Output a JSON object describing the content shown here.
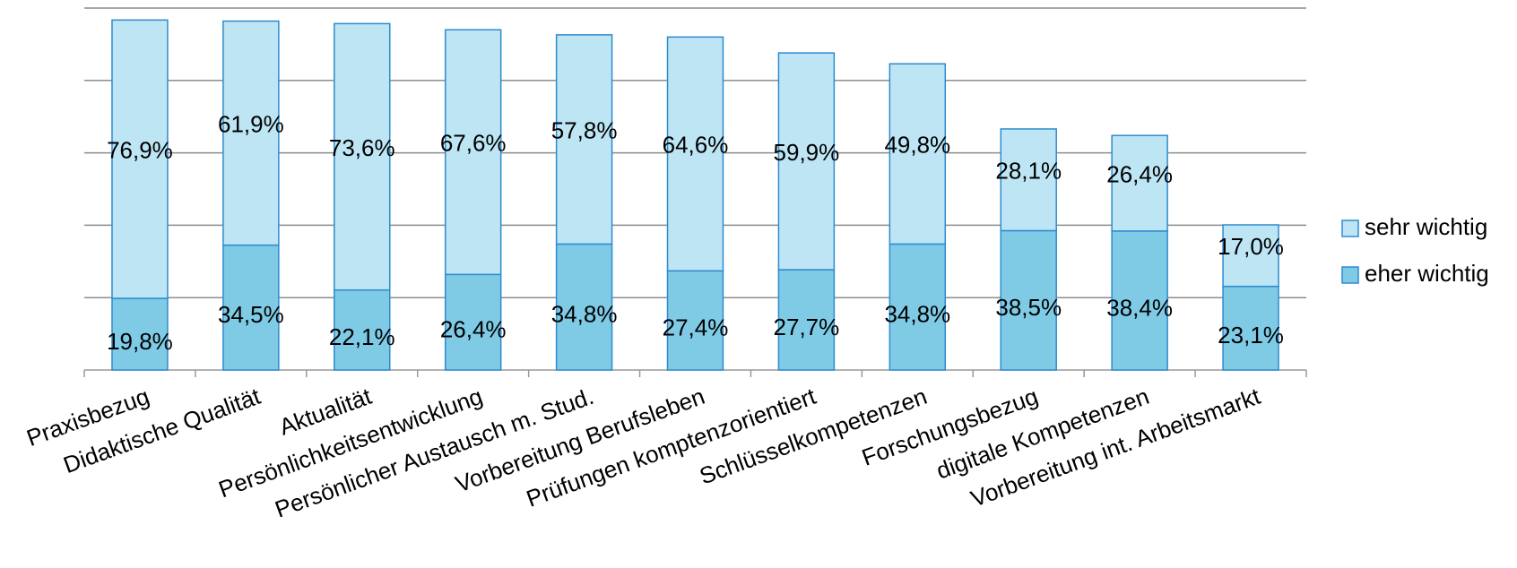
{
  "chart_data": {
    "type": "stacked_bar",
    "categories": [
      "Praxisbezug",
      "Didaktische Qualität",
      "Aktualität",
      "Persönlichkeitsentwicklung",
      "Persönlicher Austausch m. Stud.",
      "Vorbereitung Berufsleben",
      "Prüfungen komptenzorientiert",
      "Schlüsselkompetenzen",
      "Forschungsbezug",
      "digitale Kompetenzen",
      "Vorbereitung int. Arbeitsmarkt"
    ],
    "series": [
      {
        "name": "eher wichtig",
        "color": "#7fcbe6",
        "values": [
          19.8,
          34.5,
          22.1,
          26.4,
          34.8,
          27.4,
          27.7,
          34.8,
          38.5,
          38.4,
          23.1
        ],
        "value_labels": [
          "19,8%",
          "34,5%",
          "22,1%",
          "26,4%",
          "34,8%",
          "27,4%",
          "27,7%",
          "34,8%",
          "38,5%",
          "38,4%",
          "23,1%"
        ]
      },
      {
        "name": "sehr wichtig",
        "color": "#bde5f4",
        "values": [
          76.9,
          61.9,
          73.6,
          67.6,
          57.8,
          64.6,
          59.9,
          49.8,
          28.1,
          26.4,
          17.0
        ],
        "value_labels": [
          "76,9%",
          "61,9%",
          "73,6%",
          "67,6%",
          "57,8%",
          "64,6%",
          "59,9%",
          "49,8%",
          "28,1%",
          "26,4%",
          "17,0%"
        ]
      }
    ],
    "ylim": [
      0,
      100
    ],
    "yticks": [
      0,
      20,
      40,
      60,
      80,
      100
    ],
    "grid": true,
    "legend": "right"
  }
}
